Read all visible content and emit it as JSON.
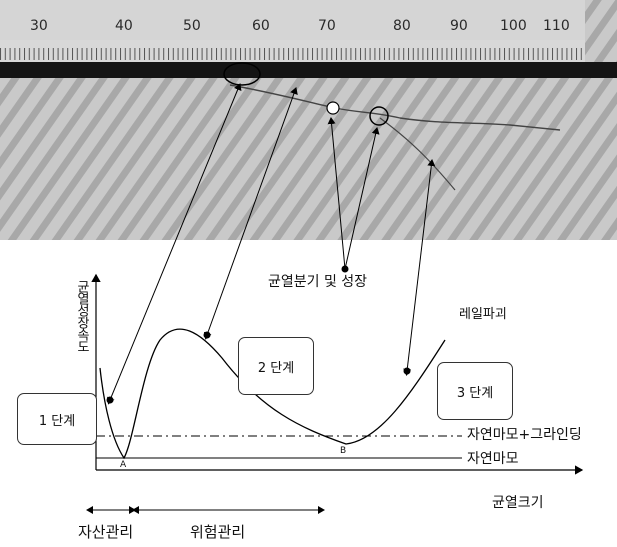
{
  "ruler": {
    "numbers": [
      "30",
      "40",
      "50",
      "60",
      "70",
      "80",
      "90",
      "100",
      "110"
    ]
  },
  "photo": {
    "colors": {
      "rail_band": "#111111",
      "ruler_bg": "#cfcfcf",
      "photo_bg": "#bdbdbd"
    }
  },
  "diagram": {
    "y_axis_label": "균열성장속도",
    "x_axis_label": "균열크기",
    "stage1": "1 단계",
    "stage2": "2 단계",
    "stage3": "3 단계",
    "branch_label": "균열분기 및 성장",
    "rail_failure_label": "레일파괴",
    "grinding_line_label": "자연마모+그라인딩",
    "natural_wear_label": "자연마모",
    "point_a": "A",
    "point_b": "B",
    "asset_mgmt_label": "자산관리",
    "risk_mgmt_label": "위험관리"
  }
}
